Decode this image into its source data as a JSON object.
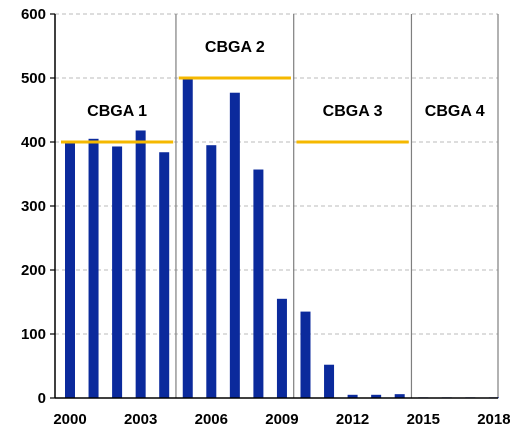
{
  "chart_data": {
    "type": "bar",
    "title": "",
    "xlabel": "",
    "ylabel": "",
    "ylim": [
      0,
      600
    ],
    "y_ticks": [
      0,
      100,
      200,
      300,
      400,
      500,
      600
    ],
    "x_tick_labels": [
      "2000",
      "2003",
      "2006",
      "2009",
      "2012",
      "2015",
      "2018"
    ],
    "grid": "horizontal dashed",
    "colors": {
      "bars": "#0b2a9c",
      "ceiling": "#f5b800",
      "grid": "#bbbbbb",
      "divider": "#7f7f7f"
    },
    "categories": [
      "2000",
      "2001",
      "2002",
      "2003",
      "2004",
      "2005",
      "2006",
      "2007",
      "2008",
      "2009",
      "2010",
      "2011",
      "2012",
      "2013",
      "2014",
      "2015",
      "2016",
      "2017",
      "2018"
    ],
    "values": [
      400,
      405,
      393,
      418,
      384,
      500,
      395,
      477,
      357,
      155,
      135,
      52,
      5,
      5,
      6,
      1,
      1,
      1,
      1
    ],
    "periods": [
      {
        "label": "CBGA 1",
        "start": "2000",
        "end": "2004",
        "ceiling": 400
      },
      {
        "label": "CBGA 2",
        "start": "2005",
        "end": "2009",
        "ceiling": 500
      },
      {
        "label": "CBGA 3",
        "start": "2010",
        "end": "2014",
        "ceiling": 400
      },
      {
        "label": "CBGA 4",
        "start": "2015",
        "end": "2018",
        "ceiling": null
      }
    ]
  }
}
